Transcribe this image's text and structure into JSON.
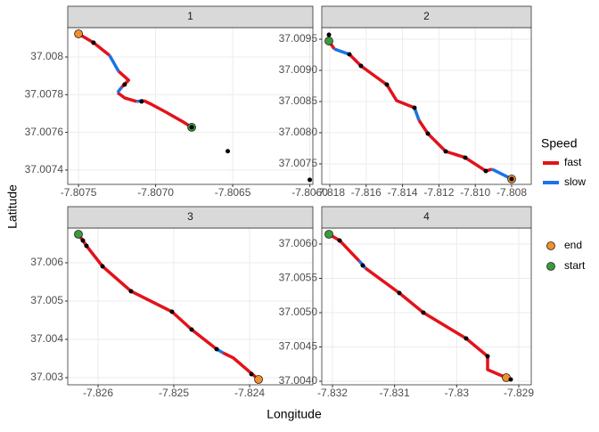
{
  "x_label": "Longitude",
  "y_label": "Latitude",
  "legend_title": "Speed",
  "chart_data": [
    {
      "type": "line",
      "title": "1",
      "xlim": [
        -7.80757,
        -7.80598
      ],
      "ylim": [
        37.007324,
        37.008156
      ],
      "xticks": [
        -7.8075,
        {
          "value": -7.807,
          "label": "-7.8070"
        },
        -7.8065,
        {
          "value": -7.806,
          "label": "-7.8060"
        }
      ],
      "yticks": [
        37.0074,
        37.0076,
        37.0078,
        37.008
      ],
      "series": [
        {
          "name": "fast",
          "color": "#e3121b",
          "x": [
            -7.8075,
            -7.807403,
            -7.807299,
            null,
            -7.80724,
            -7.807175,
            -7.807221,
            null,
            -7.807247,
            -7.807201,
            -7.807123,
            null,
            -7.807078,
            -7.80703,
            -7.806932,
            -7.806831,
            -7.806766
          ],
          "values": [
            37.008123,
            37.008076,
            37.008009,
            null,
            37.007924,
            37.007877,
            37.007839,
            null,
            37.007811,
            37.007783,
            37.007764,
            null,
            37.007769,
            37.00775,
            37.007707,
            37.00766,
            37.007627
          ]
        },
        {
          "name": "slow",
          "color": "#1a73e8",
          "x": [
            -7.807299,
            -7.80724,
            null,
            -7.807221,
            -7.807247,
            null,
            -7.807123,
            -7.807078
          ],
          "values": [
            37.008009,
            37.007924,
            null,
            37.007839,
            37.007811,
            null,
            37.007764,
            37.007769
          ]
        }
      ],
      "points": {
        "x": [
          -7.807403,
          -7.807201,
          -7.807091,
          -7.806766,
          -7.806532,
          -7.806
        ],
        "y": [
          37.008076,
          37.007854,
          37.007764,
          37.007627,
          37.0075,
          37.007348
        ]
      },
      "markers": [
        {
          "name": "end",
          "color": "#f28e2b",
          "x": -7.8075,
          "y": 37.008123
        },
        {
          "name": "start",
          "color": "#3a9b3a",
          "x": -7.806766,
          "y": 37.007627
        }
      ]
    },
    {
      "type": "line",
      "title": "2",
      "xlim": [
        -7.818441,
        -7.806922
      ],
      "ylim": [
        37.007171,
        37.009686
      ],
      "xticks": [
        -7.818,
        -7.816,
        -7.814,
        -7.812,
        {
          "value": -7.81,
          "label": "-7.810"
        },
        -7.808
      ],
      "yticks": [
        37.0075,
        {
          "value": 37.008,
          "label": "37.0080"
        },
        37.0085,
        {
          "value": 37.009,
          "label": "37.0090"
        },
        37.0095
      ],
      "series": [
        {
          "name": "fast",
          "color": "#e3121b",
          "x": [
            -7.818049,
            -7.817755,
            null,
            -7.816922,
            -7.816284,
            -7.815549,
            -7.814863,
            -7.814324,
            -7.813343,
            null,
            -7.813098,
            -7.812608,
            -7.811627,
            -7.810549,
            -7.809422,
            -7.809078
          ],
          "values": [
            37.009471,
            37.009343,
            null,
            37.009257,
            37.009071,
            37.008914,
            37.008771,
            37.008514,
            37.0084,
            null,
            37.0082,
            37.007986,
            37.0077,
            37.0076,
            37.007386,
            37.007414
          ]
        },
        {
          "name": "slow",
          "color": "#1a73e8",
          "x": [
            -7.817755,
            -7.816922,
            null,
            -7.813343,
            -7.813098,
            null,
            -7.809078,
            -7.808
          ],
          "values": [
            37.009343,
            37.009257,
            null,
            37.0084,
            37.0082,
            null,
            37.007414,
            37.007257
          ]
        }
      ],
      "points": {
        "x": [
          -7.818049,
          -7.816922,
          -7.816284,
          -7.814863,
          -7.813343,
          -7.812608,
          -7.811627,
          -7.810549,
          -7.809422,
          -7.808
        ],
        "y": [
          37.009571,
          37.009257,
          37.009071,
          37.008771,
          37.0084,
          37.007986,
          37.0077,
          37.0076,
          37.007386,
          37.007257
        ]
      },
      "markers": [
        {
          "name": "end",
          "color": "#f28e2b",
          "x": -7.808,
          "y": 37.007257
        },
        {
          "name": "start",
          "color": "#3a9b3a",
          "x": -7.818049,
          "y": 37.009471
        }
      ]
    },
    {
      "type": "line",
      "title": "3",
      "xlim": [
        -7.8264,
        -7.823165
      ],
      "ylim": [
        37.002814,
        37.006907
      ],
      "xticks": [
        -7.826,
        -7.825,
        -7.824
      ],
      "yticks": [
        37.003,
        37.004,
        37.005,
        37.006
      ],
      "series": [
        {
          "name": "fast",
          "color": "#e3121b",
          "x": [
            -7.826259,
            -7.826153,
            -7.825941,
            -7.825565,
            -7.825024,
            -7.824765,
            -7.824435,
            null,
            -7.824353,
            -7.824212,
            -7.823882
          ],
          "values": [
            37.006744,
            37.006442,
            37.005907,
            37.005256,
            37.004721,
            37.004256,
            37.003744,
            null,
            37.003651,
            37.003512,
            37.002953
          ]
        },
        {
          "name": "slow",
          "color": "#1a73e8",
          "x": [
            -7.824435,
            -7.824353
          ],
          "values": [
            37.003744,
            37.003651
          ]
        }
      ],
      "points": {
        "x": [
          -7.8262,
          -7.826153,
          -7.825941,
          -7.825565,
          -7.825024,
          -7.824765,
          -7.824435,
          -7.823976
        ],
        "y": [
          37.006581,
          37.006442,
          37.005907,
          37.005256,
          37.004721,
          37.004256,
          37.003744,
          37.003093
        ]
      },
      "markers": [
        {
          "name": "end",
          "color": "#f28e2b",
          "x": -7.823882,
          "y": 37.002953
        },
        {
          "name": "start",
          "color": "#3a9b3a",
          "x": -7.826259,
          "y": 37.006744
        }
      ]
    },
    {
      "type": "line",
      "title": "4",
      "xlim": [
        -7.832172,
        -7.828799
      ],
      "ylim": [
        37.003948,
        37.006234
      ],
      "xticks": [
        -7.832,
        -7.831,
        -7.83,
        -7.829
      ],
      "yticks": [
        {
          "value": 37.004,
          "label": "37.0040"
        },
        37.0045,
        {
          "value": 37.005,
          "label": "37.0050"
        },
        37.0055,
        {
          "value": 37.006,
          "label": "37.0060"
        }
      ],
      "series": [
        {
          "name": "fast",
          "color": "#e3121b",
          "x": [
            -7.832057,
            -7.831885,
            -7.831569,
            null,
            -7.831469,
            -7.830923,
            -7.830536,
            -7.829847,
            -7.829502,
            -7.829502,
            -7.829201
          ],
          "values": [
            37.006143,
            37.006052,
            37.005753,
            null,
            37.005649,
            37.005286,
            37.005,
            37.004623,
            37.004364,
            37.004169,
            37.004052
          ]
        },
        {
          "name": "slow",
          "color": "#1a73e8",
          "x": [
            -7.831569,
            -7.831469
          ],
          "values": [
            37.005753,
            37.005649
          ]
        }
      ],
      "points": {
        "x": [
          -7.831885,
          -7.831512,
          -7.830923,
          -7.830536,
          -7.829847,
          -7.829502,
          -7.829129
        ],
        "y": [
          37.006052,
          37.005688,
          37.005286,
          37.005,
          37.004623,
          37.004364,
          37.004026
        ]
      },
      "markers": [
        {
          "name": "end",
          "color": "#f28e2b",
          "x": -7.829201,
          "y": 37.004052
        },
        {
          "name": "start",
          "color": "#3a9b3a",
          "x": -7.832057,
          "y": 37.006143
        }
      ]
    }
  ]
}
